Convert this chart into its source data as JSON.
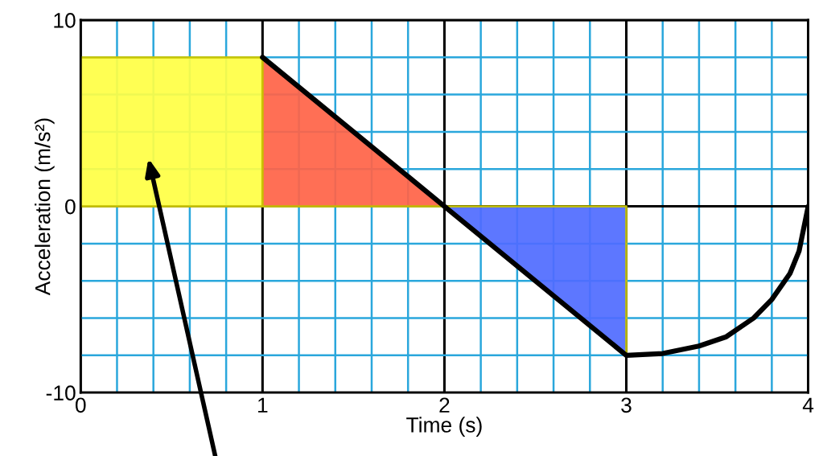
{
  "chart_data": {
    "type": "area",
    "xlabel": "Time (s)",
    "ylabel": "Acceleration (m/s²)",
    "series": [
      {
        "color": "#ffff44",
        "x": [
          0,
          1
        ],
        "values": [
          8,
          8
        ]
      },
      {
        "color": "#ff6347",
        "x": [
          1,
          2
        ],
        "values": [
          8,
          0
        ]
      },
      {
        "color": "#4f6bff",
        "x": [
          2,
          3
        ],
        "values": [
          0,
          -8
        ]
      },
      {
        "type": "line",
        "color": "#000000",
        "x": [
          1,
          2,
          3,
          3.2,
          3.4,
          3.55,
          3.7,
          3.8,
          3.9,
          3.95,
          4
        ],
        "values": [
          8,
          0,
          -8,
          -7.9,
          -7.5,
          -7,
          -6,
          -5,
          -3.6,
          -2.4,
          0
        ]
      }
    ],
    "xlim": [
      0,
      4
    ],
    "ylim": [
      -10,
      10
    ],
    "xticks": [
      0,
      {
        "value": 0.2,
        "label": null
      },
      {
        "value": 0.4,
        "label": null
      },
      {
        "value": 0.6,
        "label": null
      },
      {
        "value": 0.8,
        "label": null
      },
      1,
      {
        "value": 1.2,
        "label": null
      },
      {
        "value": 1.4,
        "label": null
      },
      {
        "value": 1.6,
        "label": null
      },
      {
        "value": 1.8,
        "label": null
      },
      2,
      {
        "value": 2.2,
        "label": null
      },
      {
        "value": 2.4,
        "label": null
      },
      {
        "value": 2.6,
        "label": null
      },
      {
        "value": 2.8,
        "label": null
      },
      3,
      {
        "value": 3.2,
        "label": null
      },
      {
        "value": 3.4,
        "label": null
      },
      {
        "value": 3.6,
        "label": null
      },
      {
        "value": 3.8,
        "label": null
      },
      4
    ],
    "yticks": [
      -10,
      {
        "value": -8,
        "label": null
      },
      {
        "value": -6,
        "label": null
      },
      {
        "value": -4,
        "label": null
      },
      {
        "value": -2,
        "label": null
      },
      0,
      {
        "value": 2,
        "label": null
      },
      {
        "value": 4,
        "label": null
      },
      {
        "value": 6,
        "label": null
      },
      {
        "value": 8,
        "label": null
      },
      10
    ],
    "grid": true,
    "marker": "none",
    "line_style": "solid",
    "legend": false
  }
}
